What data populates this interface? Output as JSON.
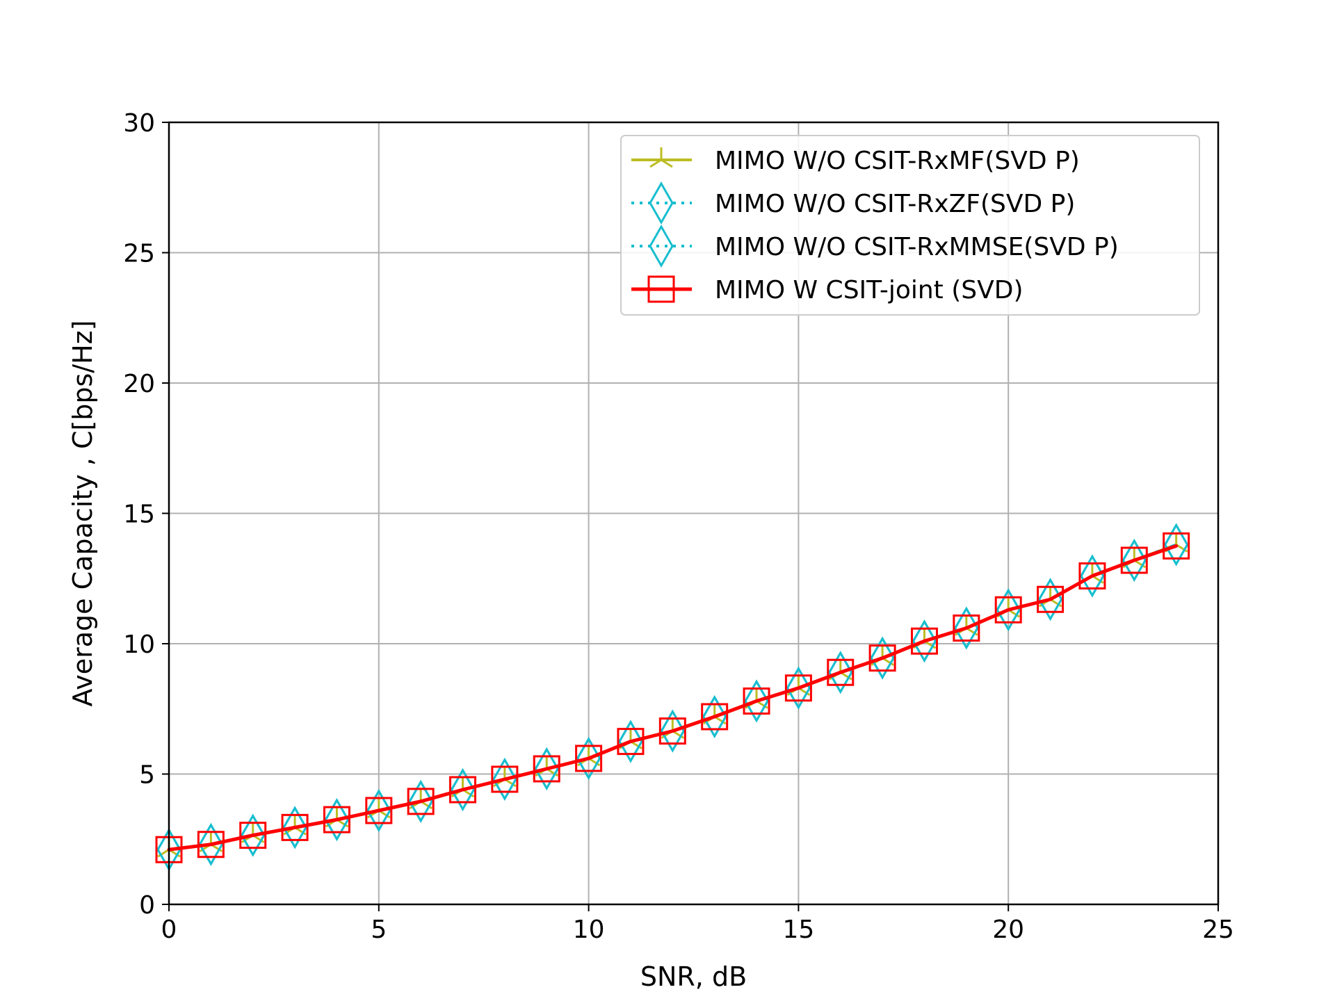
{
  "chart_data": {
    "type": "line",
    "title": "",
    "xlabel": "SNR, dB",
    "ylabel": "Average Capacity , C[bps/Hz]",
    "xlim": [
      0,
      25
    ],
    "ylim": [
      0,
      30
    ],
    "xticks": [
      0,
      5,
      10,
      15,
      20,
      25
    ],
    "yticks": [
      0,
      5,
      10,
      15,
      20,
      25,
      30
    ],
    "grid": true,
    "legend_position": "top-right",
    "x": [
      0,
      1,
      2,
      3,
      4,
      5,
      6,
      7,
      8,
      9,
      10,
      11,
      12,
      13,
      14,
      15,
      16,
      17,
      18,
      19,
      20,
      21,
      22,
      23,
      24
    ],
    "series": [
      {
        "name": "MIMO W/O CSIT-RxMF(SVD P)",
        "color": "#bcbd22",
        "line_style": "solid",
        "marker": "tri-star",
        "values": [
          2.1,
          2.3,
          2.65,
          2.95,
          3.25,
          3.6,
          3.95,
          4.4,
          4.8,
          5.2,
          5.6,
          6.25,
          6.65,
          7.2,
          7.8,
          8.3,
          8.9,
          9.45,
          10.1,
          10.6,
          11.3,
          11.7,
          12.6,
          13.2,
          13.8
        ]
      },
      {
        "name": "MIMO W/O CSIT-RxZF(SVD P)",
        "color": "#17becf",
        "line_style": "dotted",
        "marker": "thin-diamond",
        "values": [
          2.1,
          2.3,
          2.65,
          2.95,
          3.25,
          3.6,
          3.95,
          4.4,
          4.8,
          5.2,
          5.6,
          6.25,
          6.65,
          7.2,
          7.8,
          8.3,
          8.9,
          9.45,
          10.1,
          10.6,
          11.3,
          11.7,
          12.6,
          13.2,
          13.8
        ]
      },
      {
        "name": "MIMO W/O CSIT-RxMMSE(SVD P)",
        "color": "#17becf",
        "line_style": "dotted",
        "marker": "thin-diamond",
        "values": [
          2.1,
          2.3,
          2.65,
          2.95,
          3.25,
          3.6,
          3.95,
          4.4,
          4.8,
          5.2,
          5.6,
          6.25,
          6.65,
          7.2,
          7.8,
          8.3,
          8.9,
          9.45,
          10.1,
          10.6,
          11.3,
          11.7,
          12.6,
          13.2,
          13.8
        ]
      },
      {
        "name": "MIMO W CSIT-joint (SVD)",
        "color": "#ff0000",
        "line_style": "solid",
        "marker": "square",
        "values": [
          2.1,
          2.3,
          2.65,
          2.95,
          3.25,
          3.6,
          3.95,
          4.4,
          4.8,
          5.2,
          5.6,
          6.25,
          6.65,
          7.2,
          7.8,
          8.3,
          8.9,
          9.45,
          10.1,
          10.6,
          11.3,
          11.7,
          12.6,
          13.2,
          13.75
        ]
      }
    ]
  }
}
